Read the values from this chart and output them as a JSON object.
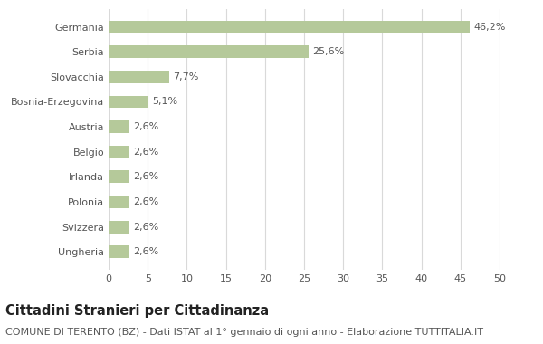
{
  "categories": [
    "Ungheria",
    "Svizzera",
    "Polonia",
    "Irlanda",
    "Belgio",
    "Austria",
    "Bosnia-Erzegovina",
    "Slovacchia",
    "Serbia",
    "Germania"
  ],
  "values": [
    2.6,
    2.6,
    2.6,
    2.6,
    2.6,
    2.6,
    5.1,
    7.7,
    25.6,
    46.2
  ],
  "labels": [
    "2,6%",
    "2,6%",
    "2,6%",
    "2,6%",
    "2,6%",
    "2,6%",
    "5,1%",
    "7,7%",
    "25,6%",
    "46,2%"
  ],
  "bar_color": "#b5c99a",
  "background_color": "#ffffff",
  "grid_color": "#d9d9d9",
  "text_color": "#555555",
  "xlim": [
    0,
    50
  ],
  "xticks": [
    0,
    5,
    10,
    15,
    20,
    25,
    30,
    35,
    40,
    45,
    50
  ],
  "title_main": "Cittadini Stranieri per Cittadinanza",
  "title_sub": "COMUNE DI TERENTO (BZ) - Dati ISTAT al 1° gennaio di ogni anno - Elaborazione TUTTITALIA.IT",
  "title_fontsize": 10.5,
  "sub_fontsize": 8,
  "label_fontsize": 8,
  "tick_fontsize": 8,
  "bar_label_fontsize": 8,
  "bar_height": 0.5
}
